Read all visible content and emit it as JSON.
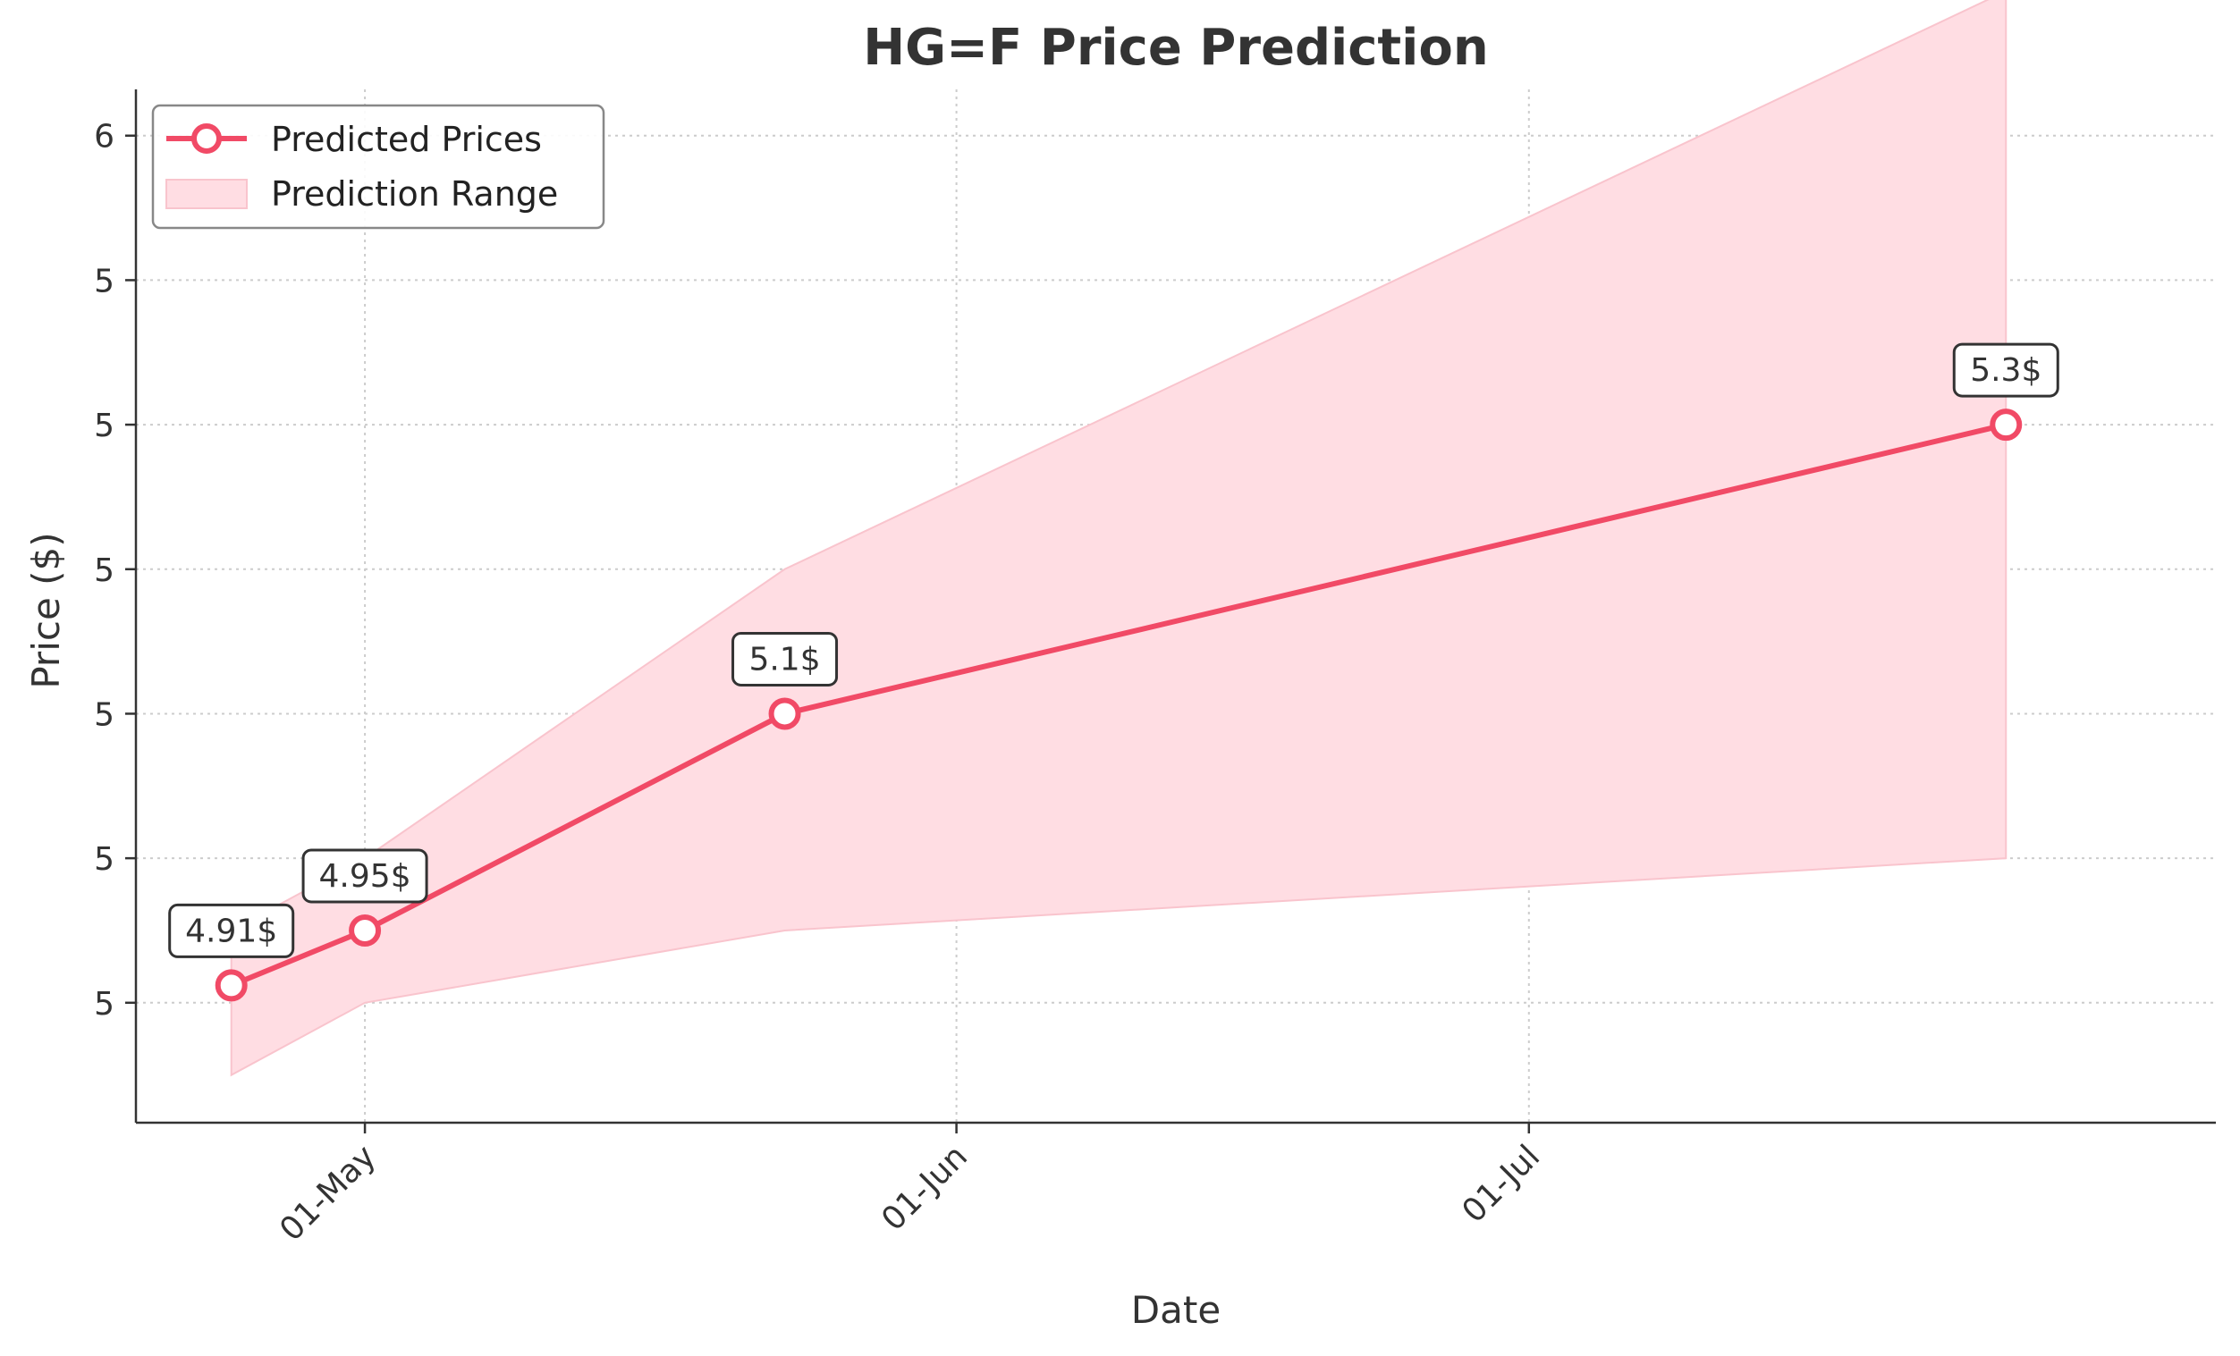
{
  "chart_data": {
    "type": "line",
    "title": "HG=F Price Prediction",
    "xlabel": "Date",
    "ylabel": "Price ($)",
    "x": [
      "2025-04-24",
      "2025-05-01",
      "2025-05-23",
      "2025-07-26"
    ],
    "series": [
      {
        "name": "Predicted Prices",
        "values": [
          4.912,
          4.95,
          5.1,
          5.3
        ],
        "labels": [
          "4.91$",
          "4.95$",
          "5.1$",
          "5.3$"
        ],
        "color": "#f14a66"
      }
    ],
    "range": {
      "name": "Prediction Range",
      "lower": [
        4.85,
        4.9,
        4.95,
        5.0
      ],
      "upper": [
        4.95,
        5.0,
        5.2,
        5.6
      ],
      "color": "#ffdde3"
    },
    "x_ticks": [
      {
        "date": "2025-05-01",
        "label": "01-May"
      },
      {
        "date": "2025-06-01",
        "label": "01-Jun"
      },
      {
        "date": "2025-07-01",
        "label": "01-Jul"
      }
    ],
    "y_ticks": [
      {
        "value": 4.9,
        "label": "5"
      },
      {
        "value": 5.0,
        "label": "5"
      },
      {
        "value": 5.1,
        "label": "5"
      },
      {
        "value": 5.2,
        "label": "5"
      },
      {
        "value": 5.3,
        "label": "5"
      },
      {
        "value": 5.4,
        "label": "5"
      },
      {
        "value": 5.5,
        "label": "6"
      }
    ],
    "xlim": [
      "2025-04-19",
      "2025-08-06"
    ],
    "ylim": [
      4.817,
      5.532
    ],
    "grid": true,
    "legend_position": "top-left"
  }
}
